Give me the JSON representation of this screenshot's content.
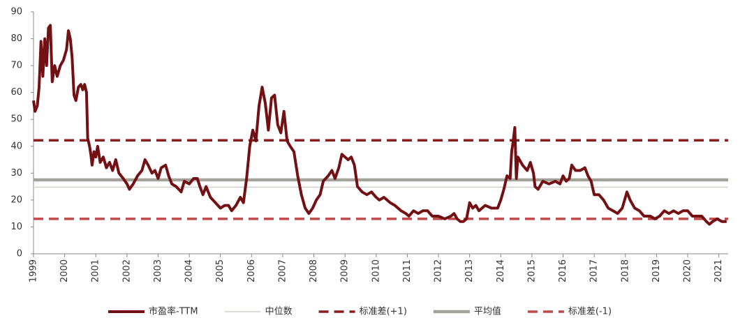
{
  "chart_data": {
    "type": "line",
    "x": [
      1999.0,
      1999.05,
      1999.12,
      1999.18,
      1999.24,
      1999.3,
      1999.36,
      1999.42,
      1999.48,
      1999.54,
      1999.6,
      1999.68,
      1999.76,
      1999.86,
      1999.96,
      2000.06,
      2000.12,
      2000.18,
      2000.24,
      2000.3,
      2000.36,
      2000.44,
      2000.52,
      2000.58,
      2000.64,
      2000.7,
      2000.74,
      2000.8,
      2000.84,
      2000.88,
      2000.94,
      2001.0,
      2001.06,
      2001.14,
      2001.24,
      2001.34,
      2001.44,
      2001.54,
      2001.64,
      2001.74,
      2001.88,
      2002.0,
      2002.08,
      2002.2,
      2002.34,
      2002.48,
      2002.58,
      2002.68,
      2002.8,
      2002.9,
      2003.0,
      2003.1,
      2003.24,
      2003.34,
      2003.44,
      2003.58,
      2003.74,
      2003.84,
      2004.0,
      2004.14,
      2004.26,
      2004.34,
      2004.44,
      2004.54,
      2004.68,
      2004.84,
      2005.0,
      2005.14,
      2005.26,
      2005.36,
      2005.5,
      2005.64,
      2005.74,
      2005.84,
      2005.94,
      2006.04,
      2006.14,
      2006.24,
      2006.34,
      2006.44,
      2006.54,
      2006.64,
      2006.74,
      2006.84,
      2006.94,
      2007.04,
      2007.14,
      2007.24,
      2007.36,
      2007.48,
      2007.6,
      2007.72,
      2007.84,
      2007.96,
      2008.08,
      2008.2,
      2008.3,
      2008.46,
      2008.58,
      2008.68,
      2008.8,
      2008.9,
      2009.0,
      2009.1,
      2009.2,
      2009.3,
      2009.4,
      2009.55,
      2009.7,
      2009.85,
      2010.0,
      2010.1,
      2010.25,
      2010.45,
      2010.6,
      2010.8,
      2010.95,
      2011.05,
      2011.2,
      2011.35,
      2011.5,
      2011.65,
      2011.8,
      2012.0,
      2012.2,
      2012.4,
      2012.5,
      2012.6,
      2012.7,
      2012.8,
      2012.9,
      2013.0,
      2013.1,
      2013.2,
      2013.3,
      2013.5,
      2013.7,
      2013.9,
      2014.0,
      2014.1,
      2014.2,
      2014.3,
      2014.35,
      2014.4,
      2014.45,
      2014.5,
      2014.55,
      2014.7,
      2014.85,
      2014.95,
      2015.05,
      2015.1,
      2015.2,
      2015.35,
      2015.55,
      2015.75,
      2015.9,
      2016.0,
      2016.1,
      2016.2,
      2016.28,
      2016.4,
      2016.55,
      2016.7,
      2016.8,
      2016.9,
      2017.0,
      2017.15,
      2017.3,
      2017.45,
      2017.6,
      2017.75,
      2017.9,
      2018.05,
      2018.15,
      2018.3,
      2018.45,
      2018.6,
      2018.8,
      2018.95,
      2019.1,
      2019.25,
      2019.4,
      2019.55,
      2019.7,
      2019.85,
      2020.0,
      2020.15,
      2020.3,
      2020.45,
      2020.6,
      2020.7,
      2020.8,
      2020.95,
      2021.1,
      2021.25
    ],
    "series": [
      {
        "name": "市盈率-TTM",
        "color": "#731013",
        "values": [
          57,
          53,
          55,
          62,
          79,
          66,
          80,
          70,
          84,
          85,
          64,
          70,
          66,
          70,
          72,
          76,
          83,
          80,
          73,
          59,
          57,
          62,
          63,
          61,
          63,
          60,
          43,
          40,
          37,
          33,
          38,
          36,
          40,
          34,
          36,
          32,
          34,
          31,
          35,
          30,
          28,
          26,
          24,
          26,
          29,
          31,
          35,
          33,
          30,
          31,
          28,
          32,
          33,
          29,
          26,
          25,
          23,
          27,
          26,
          28,
          28,
          25,
          22,
          25,
          21,
          19,
          17,
          18,
          18,
          16,
          18,
          21,
          19,
          28,
          40,
          46,
          42,
          55,
          62,
          56,
          46,
          58,
          59,
          48,
          45,
          53,
          42,
          40,
          38,
          29,
          22,
          17,
          15,
          17,
          20,
          22,
          27,
          29,
          31,
          28,
          32,
          37,
          36,
          35,
          36,
          33,
          25,
          23,
          22,
          23,
          21,
          20,
          21,
          19,
          18,
          16,
          15,
          14,
          16,
          15,
          16,
          16,
          14,
          14,
          13,
          14,
          15,
          13,
          12,
          12,
          13,
          19,
          17,
          18,
          16,
          18,
          17,
          17,
          20,
          24,
          29,
          28,
          38,
          42,
          47,
          28,
          36,
          33,
          31,
          34,
          30,
          25,
          24,
          27,
          26,
          27,
          26,
          29,
          27,
          28,
          33,
          31,
          31,
          32,
          29,
          27,
          22,
          22,
          20,
          17,
          16,
          15,
          17,
          23,
          20,
          17,
          16,
          14,
          14,
          13,
          14,
          16,
          15,
          16,
          15,
          16,
          16,
          14,
          14,
          14,
          12,
          11,
          12,
          13,
          12,
          12
        ]
      }
    ],
    "reference_lines": [
      {
        "name": "中位数",
        "value": 24.8,
        "color": "#d0d0cc",
        "style": "thin"
      },
      {
        "name": "标准差(+1)",
        "value": 42.2,
        "color": "#8c1d1f",
        "style": "dashed"
      },
      {
        "name": "平均值",
        "value": 27.5,
        "color": "#a3a39a",
        "style": "thick"
      },
      {
        "name": "标准差(-1)",
        "value": 13,
        "color": "#c0494c",
        "style": "dashed"
      }
    ],
    "legend_order": [
      "series.0",
      "reference_lines.0",
      "reference_lines.1",
      "reference_lines.2",
      "reference_lines.3"
    ],
    "xlim": [
      1999,
      2021.3
    ],
    "xticks": [
      1999,
      2000,
      2001,
      2002,
      2003,
      2004,
      2005,
      2006,
      2007,
      2008,
      2009,
      2010,
      2011,
      2012,
      2013,
      2014,
      2015,
      2016,
      2017,
      2018,
      2019,
      2020,
      2021
    ],
    "ylim": [
      0,
      90
    ],
    "yticks": [
      0,
      10,
      20,
      30,
      40,
      50,
      60,
      70,
      80,
      90
    ]
  }
}
